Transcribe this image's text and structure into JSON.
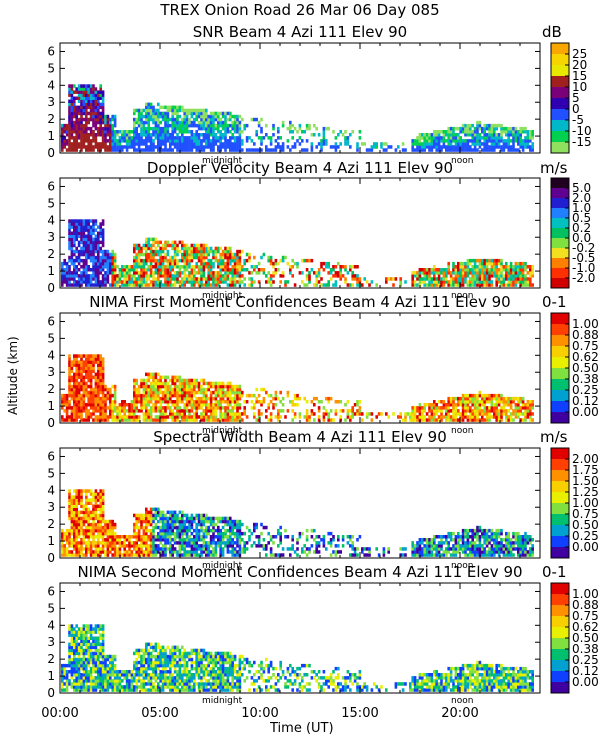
{
  "figure": {
    "title": "TREX Onion Road  26 Mar 06 Day 085",
    "ylabel": "Altitude (km)",
    "xlabel": "Time (UT)",
    "xticks": [
      "00:00",
      "05:00",
      "10:00",
      "15:00",
      "20:00"
    ],
    "yticks": [
      "0",
      "1",
      "2",
      "3",
      "4",
      "5",
      "6"
    ],
    "midnight_label": "midnight",
    "noon_label": "noon"
  },
  "chart_data": [
    {
      "type": "heatmap",
      "title": "SNR Beam 4 Azi 111 Elev 90",
      "units": "dB",
      "xlabel": "Time (UT)",
      "ylabel": "Altitude (km)",
      "xlim": [
        0,
        24
      ],
      "ylim": [
        0,
        6.5
      ],
      "colorbar": {
        "labels": [
          "25",
          "20",
          "15",
          "10",
          "5",
          "0",
          "-5",
          "-10",
          "-15"
        ],
        "colors": [
          "#f8a800",
          "#f8d400",
          "#e8e800",
          "#a02020",
          "#7a007a",
          "#3000b0",
          "#2050ff",
          "#00b8c8",
          "#00d050",
          "#90e060"
        ]
      }
    },
    {
      "type": "heatmap",
      "title": "Doppler Velocity Beam 4 Azi 111 Elev 90",
      "units": "m/s",
      "xlabel": "Time (UT)",
      "ylabel": "Altitude (km)",
      "xlim": [
        0,
        24
      ],
      "ylim": [
        0,
        6.5
      ],
      "colorbar": {
        "labels": [
          "5.0",
          "2.0",
          "1.0",
          "0.5",
          "0.2",
          "0.0",
          "-0.2",
          "-0.5",
          "-1.0",
          "-2.0"
        ],
        "colors": [
          "#200020",
          "#600090",
          "#2020d0",
          "#2080ff",
          "#00c0c0",
          "#00c060",
          "#80e040",
          "#f0e020",
          "#ff8000",
          "#ff3000",
          "#d00000"
        ]
      }
    },
    {
      "type": "heatmap",
      "title": "NIMA First Moment Confidences Beam 4 Azi 111 Elev 90",
      "units": "0-1",
      "xlabel": "Time (UT)",
      "ylabel": "Altitude (km)",
      "xlim": [
        0,
        24
      ],
      "ylim": [
        0,
        6.5
      ],
      "colorbar": {
        "labels": [
          "1.00",
          "0.88",
          "0.75",
          "0.62",
          "0.50",
          "0.38",
          "0.25",
          "0.12",
          "0.00"
        ],
        "colors": [
          "#e00000",
          "#ff4000",
          "#ff9000",
          "#f8d000",
          "#e8f000",
          "#80e040",
          "#00c070",
          "#00a0d0",
          "#1040ff",
          "#4000a0"
        ]
      }
    },
    {
      "type": "heatmap",
      "title": "Spectral Width Beam 4 Azi 111 Elev 90",
      "units": "m/s",
      "xlabel": "Time (UT)",
      "ylabel": "Altitude (km)",
      "xlim": [
        0,
        24
      ],
      "ylim": [
        0,
        6.5
      ],
      "colorbar": {
        "labels": [
          "2.00",
          "1.75",
          "1.50",
          "1.25",
          "1.00",
          "0.75",
          "0.50",
          "0.25",
          "0.00"
        ],
        "colors": [
          "#e00000",
          "#ff4000",
          "#ff9000",
          "#f8d000",
          "#e8f000",
          "#80e040",
          "#00c070",
          "#00a0d0",
          "#1040ff",
          "#4000a0"
        ]
      }
    },
    {
      "type": "heatmap",
      "title": "NIMA Second Moment Confidences Beam 4 Azi 111 Elev 90",
      "units": "0-1",
      "xlabel": "Time (UT)",
      "ylabel": "Altitude (km)",
      "xlim": [
        0,
        24
      ],
      "ylim": [
        0,
        6.5
      ],
      "colorbar": {
        "labels": [
          "1.00",
          "0.88",
          "0.75",
          "0.62",
          "0.50",
          "0.38",
          "0.25",
          "0.12",
          "0.00"
        ],
        "colors": [
          "#e00000",
          "#ff4000",
          "#ff9000",
          "#f8d000",
          "#e8f000",
          "#80e040",
          "#00c070",
          "#00a0d0",
          "#1040ff",
          "#4000a0"
        ]
      }
    }
  ]
}
